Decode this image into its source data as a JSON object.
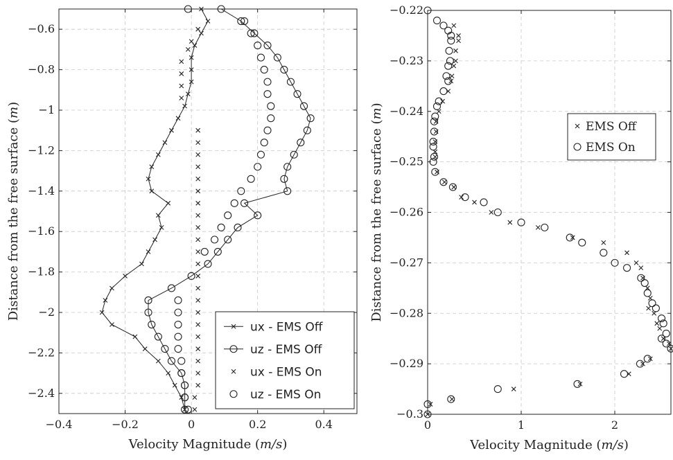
{
  "chart_data": [
    {
      "type": "line",
      "xlabel_prefix": "Velocity Magnitude (",
      "xlabel_unit": "m/s",
      "xlabel_suffix": ")",
      "ylabel_prefix": "Distance from the free surface (",
      "ylabel_unit": "m",
      "ylabel_suffix": ")",
      "xlim": [
        -0.4,
        0.5
      ],
      "ylim": [
        -2.5,
        -0.5
      ],
      "xticks": [
        -0.4,
        -0.2,
        0,
        0.2,
        0.4
      ],
      "xtick_labels": [
        "−0.4",
        "−0.2",
        "0",
        "0.2",
        "0.4"
      ],
      "yticks": [
        -2.4,
        -2.2,
        -2,
        -1.8,
        -1.6,
        -1.4,
        -1.2,
        -1,
        -0.8,
        -0.6
      ],
      "ytick_labels": [
        "−2.4",
        "−2.2",
        "−2",
        "−1.8",
        "−1.6",
        "−1.4",
        "−1.2",
        "−1",
        "−0.8",
        "−0.6"
      ],
      "grid": true,
      "legend_position": "bottom-right",
      "series": [
        {
          "name": "ux - EMS Off",
          "marker": "x",
          "line": true,
          "points": [
            [
              0.03,
              -0.5
            ],
            [
              0.05,
              -0.56
            ],
            [
              0.03,
              -0.62
            ],
            [
              0.01,
              -0.68
            ],
            [
              0.0,
              -0.74
            ],
            [
              0.0,
              -0.8
            ],
            [
              0.0,
              -0.86
            ],
            [
              -0.01,
              -0.92
            ],
            [
              -0.02,
              -0.98
            ],
            [
              -0.04,
              -1.04
            ],
            [
              -0.06,
              -1.1
            ],
            [
              -0.08,
              -1.16
            ],
            [
              -0.1,
              -1.22
            ],
            [
              -0.12,
              -1.28
            ],
            [
              -0.13,
              -1.34
            ],
            [
              -0.12,
              -1.4
            ],
            [
              -0.07,
              -1.46
            ],
            [
              -0.1,
              -1.52
            ],
            [
              -0.09,
              -1.58
            ],
            [
              -0.11,
              -1.64
            ],
            [
              -0.13,
              -1.7
            ],
            [
              -0.15,
              -1.76
            ],
            [
              -0.2,
              -1.82
            ],
            [
              -0.24,
              -1.88
            ],
            [
              -0.26,
              -1.94
            ],
            [
              -0.27,
              -2.0
            ],
            [
              -0.24,
              -2.06
            ],
            [
              -0.17,
              -2.12
            ],
            [
              -0.14,
              -2.18
            ],
            [
              -0.1,
              -2.24
            ],
            [
              -0.07,
              -2.3
            ],
            [
              -0.05,
              -2.36
            ],
            [
              -0.03,
              -2.42
            ],
            [
              -0.02,
              -2.48
            ]
          ]
        },
        {
          "name": "uz - EMS Off",
          "marker": "o",
          "line": true,
          "points": [
            [
              -0.01,
              -0.5
            ],
            [
              0.09,
              -0.5
            ],
            [
              0.15,
              -0.56
            ],
            [
              0.19,
              -0.62
            ],
            [
              0.23,
              -0.68
            ],
            [
              0.26,
              -0.74
            ],
            [
              0.28,
              -0.8
            ],
            [
              0.3,
              -0.86
            ],
            [
              0.32,
              -0.92
            ],
            [
              0.34,
              -0.98
            ],
            [
              0.36,
              -1.04
            ],
            [
              0.35,
              -1.1
            ],
            [
              0.33,
              -1.16
            ],
            [
              0.31,
              -1.22
            ],
            [
              0.29,
              -1.28
            ],
            [
              0.28,
              -1.34
            ],
            [
              0.29,
              -1.4
            ],
            [
              0.16,
              -1.46
            ],
            [
              0.2,
              -1.52
            ],
            [
              0.14,
              -1.58
            ],
            [
              0.11,
              -1.64
            ],
            [
              0.08,
              -1.7
            ],
            [
              0.05,
              -1.76
            ],
            [
              0.0,
              -1.82
            ],
            [
              -0.06,
              -1.88
            ],
            [
              -0.13,
              -1.94
            ],
            [
              -0.13,
              -2.0
            ],
            [
              -0.12,
              -2.06
            ],
            [
              -0.1,
              -2.12
            ],
            [
              -0.08,
              -2.18
            ],
            [
              -0.06,
              -2.24
            ],
            [
              -0.03,
              -2.3
            ],
            [
              -0.02,
              -2.36
            ],
            [
              -0.02,
              -2.42
            ],
            [
              -0.02,
              -2.48
            ]
          ]
        },
        {
          "name": "ux - EMS On",
          "marker": "x",
          "line": false,
          "points": [
            [
              0.02,
              -0.6
            ],
            [
              0.0,
              -0.66
            ],
            [
              -0.01,
              -0.7
            ],
            [
              -0.03,
              -0.76
            ],
            [
              -0.03,
              -0.82
            ],
            [
              -0.03,
              -0.88
            ],
            [
              -0.03,
              -0.94
            ],
            [
              0.02,
              -1.1
            ],
            [
              0.02,
              -1.16
            ],
            [
              0.02,
              -1.22
            ],
            [
              0.02,
              -1.28
            ],
            [
              0.02,
              -1.34
            ],
            [
              0.02,
              -1.4
            ],
            [
              0.02,
              -1.46
            ],
            [
              0.02,
              -1.52
            ],
            [
              0.02,
              -1.58
            ],
            [
              0.02,
              -1.64
            ],
            [
              0.02,
              -1.7
            ],
            [
              0.02,
              -1.76
            ],
            [
              0.02,
              -1.82
            ],
            [
              0.02,
              -1.88
            ],
            [
              0.02,
              -1.94
            ],
            [
              0.02,
              -2.0
            ],
            [
              0.02,
              -2.06
            ],
            [
              0.02,
              -2.12
            ],
            [
              0.02,
              -2.18
            ],
            [
              0.02,
              -2.24
            ],
            [
              0.02,
              -2.3
            ],
            [
              0.02,
              -2.36
            ],
            [
              0.01,
              -2.42
            ],
            [
              0.01,
              -2.48
            ]
          ]
        },
        {
          "name": "uz - EMS On",
          "marker": "o",
          "line": false,
          "points": [
            [
              0.16,
              -0.56
            ],
            [
              0.18,
              -0.62
            ],
            [
              0.2,
              -0.68
            ],
            [
              0.21,
              -0.74
            ],
            [
              0.22,
              -0.8
            ],
            [
              0.23,
              -0.86
            ],
            [
              0.23,
              -0.92
            ],
            [
              0.24,
              -0.98
            ],
            [
              0.24,
              -1.04
            ],
            [
              0.23,
              -1.1
            ],
            [
              0.22,
              -1.16
            ],
            [
              0.21,
              -1.22
            ],
            [
              0.2,
              -1.28
            ],
            [
              0.18,
              -1.34
            ],
            [
              0.15,
              -1.4
            ],
            [
              0.13,
              -1.46
            ],
            [
              0.11,
              -1.52
            ],
            [
              0.09,
              -1.58
            ],
            [
              0.07,
              -1.64
            ],
            [
              0.04,
              -1.7
            ],
            [
              -0.04,
              -1.94
            ],
            [
              -0.04,
              -2.0
            ],
            [
              -0.04,
              -2.06
            ],
            [
              -0.04,
              -2.12
            ],
            [
              -0.04,
              -2.18
            ],
            [
              -0.03,
              -2.24
            ],
            [
              -0.03,
              -2.3
            ],
            [
              -0.02,
              -2.36
            ],
            [
              -0.02,
              -2.42
            ],
            [
              -0.01,
              -2.48
            ]
          ]
        }
      ]
    },
    {
      "type": "scatter",
      "xlabel_prefix": "Velocity Magnitude (",
      "xlabel_unit": "m/s",
      "xlabel_suffix": ")",
      "ylabel_prefix": "Distance from the free surface (",
      "ylabel_unit": "m",
      "ylabel_suffix": ")",
      "xlim": [
        0,
        2.6
      ],
      "ylim": [
        -0.3,
        -0.22
      ],
      "xticks": [
        0,
        1,
        2
      ],
      "xtick_labels": [
        "0",
        "1",
        "2"
      ],
      "yticks": [
        -0.3,
        -0.29,
        -0.28,
        -0.27,
        -0.26,
        -0.25,
        -0.24,
        -0.23,
        -0.22
      ],
      "ytick_labels": [
        "−0.3",
        "−0.29",
        "−0.28",
        "−0.27",
        "−0.26",
        "−0.25",
        "−0.24",
        "−0.23",
        "−0.22"
      ],
      "grid": true,
      "legend_position": "top-right",
      "series": [
        {
          "name": "EMS Off",
          "marker": "x",
          "points": [
            [
              0.28,
              -0.223
            ],
            [
              0.33,
              -0.225
            ],
            [
              0.33,
              -0.226
            ],
            [
              0.3,
              -0.228
            ],
            [
              0.3,
              -0.23
            ],
            [
              0.28,
              -0.231
            ],
            [
              0.26,
              -0.233
            ],
            [
              0.25,
              -0.234
            ],
            [
              0.22,
              -0.236
            ],
            [
              0.16,
              -0.238
            ],
            [
              0.12,
              -0.24
            ],
            [
              0.09,
              -0.242
            ],
            [
              0.09,
              -0.244
            ],
            [
              0.08,
              -0.246
            ],
            [
              0.08,
              -0.248
            ],
            [
              0.08,
              -0.249
            ],
            [
              0.1,
              -0.252
            ],
            [
              0.18,
              -0.254
            ],
            [
              0.28,
              -0.255
            ],
            [
              0.36,
              -0.257
            ],
            [
              0.5,
              -0.258
            ],
            [
              0.68,
              -0.26
            ],
            [
              0.88,
              -0.262
            ],
            [
              1.18,
              -0.263
            ],
            [
              1.55,
              -0.265
            ],
            [
              1.88,
              -0.266
            ],
            [
              2.13,
              -0.268
            ],
            [
              2.23,
              -0.27
            ],
            [
              2.28,
              -0.271
            ],
            [
              2.3,
              -0.273
            ],
            [
              2.35,
              -0.275
            ],
            [
              2.38,
              -0.277
            ],
            [
              2.36,
              -0.279
            ],
            [
              2.42,
              -0.28
            ],
            [
              2.45,
              -0.282
            ],
            [
              2.48,
              -0.283
            ],
            [
              2.52,
              -0.285
            ],
            [
              2.58,
              -0.286
            ],
            [
              2.6,
              -0.287
            ],
            [
              2.3,
              -0.29
            ],
            [
              2.15,
              -0.292
            ],
            [
              2.38,
              -0.289
            ],
            [
              1.63,
              -0.294
            ],
            [
              0.92,
              -0.295
            ],
            [
              0.26,
              -0.297
            ],
            [
              0.03,
              -0.298
            ],
            [
              0.0,
              -0.3
            ]
          ]
        },
        {
          "name": "EMS On",
          "marker": "o",
          "points": [
            [
              0.0,
              -0.22
            ],
            [
              0.1,
              -0.222
            ],
            [
              0.17,
              -0.223
            ],
            [
              0.22,
              -0.224
            ],
            [
              0.25,
              -0.225
            ],
            [
              0.25,
              -0.226
            ],
            [
              0.23,
              -0.228
            ],
            [
              0.24,
              -0.23
            ],
            [
              0.22,
              -0.231
            ],
            [
              0.2,
              -0.233
            ],
            [
              0.22,
              -0.234
            ],
            [
              0.17,
              -0.236
            ],
            [
              0.12,
              -0.238
            ],
            [
              0.1,
              -0.239
            ],
            [
              0.08,
              -0.241
            ],
            [
              0.07,
              -0.242
            ],
            [
              0.07,
              -0.244
            ],
            [
              0.06,
              -0.246
            ],
            [
              0.06,
              -0.247
            ],
            [
              0.07,
              -0.249
            ],
            [
              0.06,
              -0.25
            ],
            [
              0.08,
              -0.252
            ],
            [
              0.17,
              -0.254
            ],
            [
              0.27,
              -0.255
            ],
            [
              0.4,
              -0.257
            ],
            [
              0.6,
              -0.258
            ],
            [
              0.75,
              -0.26
            ],
            [
              1.0,
              -0.262
            ],
            [
              1.25,
              -0.263
            ],
            [
              1.52,
              -0.265
            ],
            [
              1.65,
              -0.266
            ],
            [
              1.88,
              -0.268
            ],
            [
              2.0,
              -0.27
            ],
            [
              2.13,
              -0.271
            ],
            [
              2.28,
              -0.273
            ],
            [
              2.32,
              -0.274
            ],
            [
              2.35,
              -0.276
            ],
            [
              2.4,
              -0.278
            ],
            [
              2.44,
              -0.279
            ],
            [
              2.5,
              -0.281
            ],
            [
              2.52,
              -0.282
            ],
            [
              2.55,
              -0.284
            ],
            [
              2.5,
              -0.285
            ],
            [
              2.55,
              -0.286
            ],
            [
              2.6,
              -0.287
            ],
            [
              2.27,
              -0.29
            ],
            [
              2.1,
              -0.292
            ],
            [
              2.35,
              -0.289
            ],
            [
              1.6,
              -0.294
            ],
            [
              0.75,
              -0.295
            ],
            [
              0.25,
              -0.297
            ],
            [
              0.0,
              -0.298
            ],
            [
              0.0,
              -0.3
            ]
          ]
        }
      ]
    }
  ]
}
